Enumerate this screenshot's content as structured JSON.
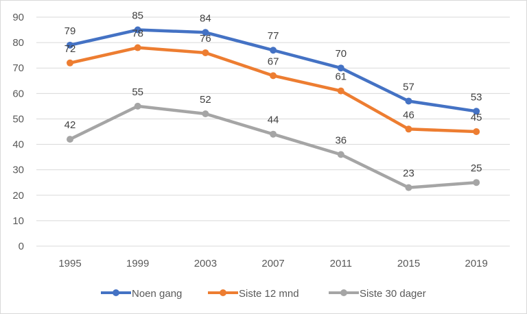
{
  "chart_data": {
    "type": "line",
    "categories": [
      "1995",
      "1999",
      "2003",
      "2007",
      "2011",
      "2015",
      "2019"
    ],
    "ylim": [
      0,
      90
    ],
    "yticks": [
      0,
      10,
      20,
      30,
      40,
      50,
      60,
      70,
      80,
      90
    ],
    "grid": true,
    "legend_position": "bottom",
    "data_labels": true,
    "series": [
      {
        "name": "Noen gang",
        "color": "#4472c4",
        "values": [
          79,
          85,
          84,
          77,
          70,
          57,
          53
        ]
      },
      {
        "name": "Siste 12 mnd",
        "color": "#ed7d31",
        "values": [
          72,
          78,
          76,
          67,
          61,
          46,
          45
        ]
      },
      {
        "name": "Siste 30 dager",
        "color": "#a5a5a5",
        "values": [
          42,
          55,
          52,
          44,
          36,
          23,
          25
        ]
      }
    ]
  }
}
